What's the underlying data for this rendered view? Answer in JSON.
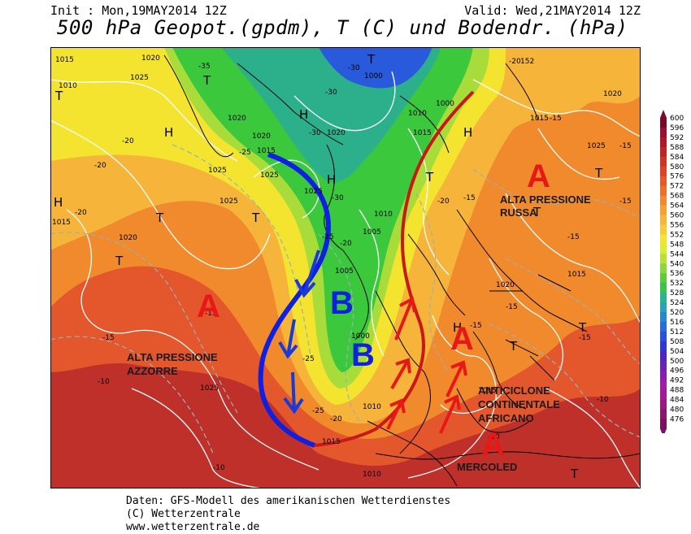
{
  "header": {
    "init": "Init : Mon,19MAY2014 12Z",
    "valid": "Valid: Wed,21MAY2014 12Z",
    "title": "500 hPa Geopot.(gpdm), T (C) und Bodendr. (hPa)"
  },
  "footer": {
    "line1": "Daten: GFS-Modell des amerikanischen Wetterdienstes",
    "line2": "(C) Wetterzentrale",
    "line3": "www.wetterzentrale.de"
  },
  "colors": {
    "deep_red": "#c0302a",
    "orange_red": "#e4562c",
    "orange": "#f08a2c",
    "amber": "#f6b43a",
    "yellow": "#f4e430",
    "lime": "#a8dc3a",
    "green": "#3cc83c",
    "teal": "#2cb08c",
    "blue": "#2a5adc",
    "analysis_blue": "#1020e0",
    "analysis_red": "#d81818",
    "label_red": "#e81818"
  },
  "annotations": {
    "high_azores_letter": "A",
    "high_azores_label_1": "ALTA PRESSIONE",
    "high_azores_label_2": "AZZORRE",
    "high_russia_letter": "A",
    "high_russia_label_1": "ALTA PRESSIONE",
    "high_russia_label_2": "RUSSA",
    "high_africa_letter_1": "A",
    "high_africa_letter_2": "A",
    "high_africa_label_1": "ANTICICLONE",
    "high_africa_label_2": "CONTINENTALE",
    "high_africa_label_3": "AFRICANO",
    "day_label": "MERCOLED",
    "low_letter_1": "B",
    "low_letter_2": "B"
  },
  "map_symbols": {
    "h": "H",
    "t": "T"
  },
  "isobar_labels": {
    "p1015": "1015",
    "p1020": "1020",
    "p1025": "1025",
    "p1010": "1010",
    "p1005": "1005",
    "p1000": "1000",
    "p152": "152"
  },
  "temp_labels": {
    "m10": "-10",
    "m15": "-15",
    "m20": "-20",
    "m25": "-25",
    "m30": "-30",
    "m35": "-35"
  },
  "scale": {
    "ticks": [
      "600",
      "596",
      "592",
      "588",
      "584",
      "580",
      "576",
      "572",
      "568",
      "564",
      "560",
      "556",
      "552",
      "548",
      "544",
      "540",
      "536",
      "532",
      "528",
      "524",
      "520",
      "516",
      "512",
      "508",
      "504",
      "500",
      "496",
      "492",
      "488",
      "484",
      "480",
      "476"
    ],
    "colors": [
      "#7a0a2a",
      "#9a1030",
      "#b01828",
      "#c02424",
      "#d03424",
      "#dc4424",
      "#e45a28",
      "#ec7028",
      "#f08a2c",
      "#f4a034",
      "#f6b63a",
      "#f6cc36",
      "#f4e430",
      "#dcec30",
      "#b8e036",
      "#8cd83a",
      "#5ccc3c",
      "#3cc050",
      "#2cb48c",
      "#28a4b4",
      "#2888cc",
      "#2a6cdc",
      "#2a50dc",
      "#3038d0",
      "#4828c0",
      "#6a20b4",
      "#8c1cb0",
      "#a01ca8",
      "#a41a94",
      "#9c1880",
      "#8c1470",
      "#7a1060"
    ]
  }
}
